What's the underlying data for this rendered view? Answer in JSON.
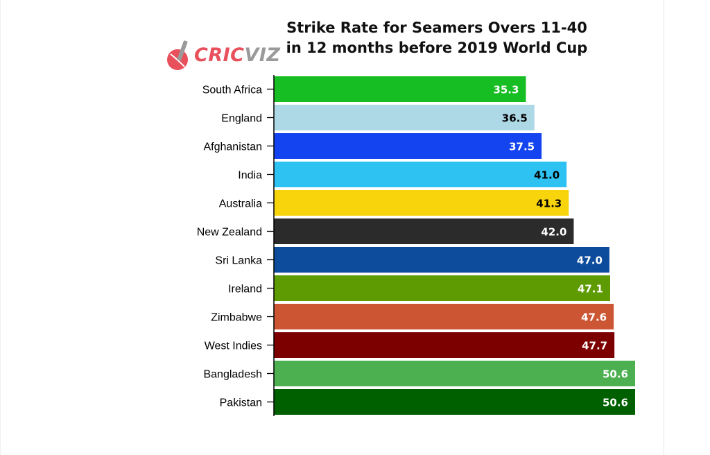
{
  "title_line1": "Strike Rate for Seamers Overs 11-40",
  "title_line2": "in 12 months before 2019 World Cup",
  "logo": {
    "part1": "CRIC",
    "part2": "VIZ",
    "icon": "cricket-ball-bat-icon"
  },
  "chart_data": {
    "type": "bar",
    "orientation": "horizontal",
    "title": "Strike Rate for Seamers Overs 11-40 in 12 months before 2019 World Cup",
    "xlabel": "",
    "ylabel": "",
    "grid": false,
    "categories": [
      "South Africa",
      "England",
      "Afghanistan",
      "India",
      "Australia",
      "New Zealand",
      "Sri Lanka",
      "Ireland",
      "Zimbabwe",
      "West Indies",
      "Bangladesh",
      "Pakistan"
    ],
    "values": [
      35.3,
      36.5,
      37.5,
      41.0,
      41.3,
      42.0,
      47.0,
      47.1,
      47.6,
      47.7,
      50.6,
      50.6
    ],
    "labels": [
      "35.3",
      "36.5",
      "37.5",
      "41.0",
      "41.3",
      "42.0",
      "47.0",
      "47.1",
      "47.6",
      "47.7",
      "50.6",
      "50.6"
    ],
    "colors": [
      "#17be23",
      "#add8e6",
      "#1444f0",
      "#2ec2f2",
      "#f7d40c",
      "#2b2b2b",
      "#0d4b9c",
      "#5e9a02",
      "#cc5533",
      "#7d0000",
      "#4cb050",
      "#006000"
    ],
    "label_colors": [
      "#ffffff",
      "#000000",
      "#ffffff",
      "#000000",
      "#000000",
      "#ffffff",
      "#ffffff",
      "#ffffff",
      "#ffffff",
      "#ffffff",
      "#ffffff",
      "#ffffff"
    ]
  }
}
